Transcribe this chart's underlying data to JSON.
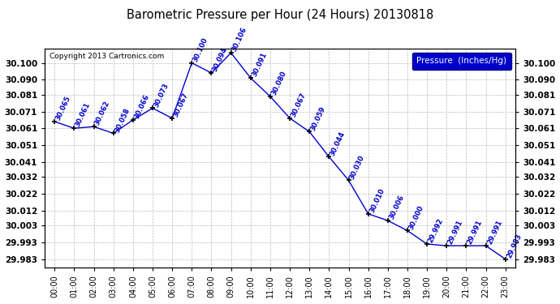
{
  "title": "Barometric Pressure per Hour (24 Hours) 20130818",
  "copyright": "Copyright 2013 Cartronics.com",
  "legend_label": "Pressure  (Inches/Hg)",
  "hours": [
    0,
    1,
    2,
    3,
    4,
    5,
    6,
    7,
    8,
    9,
    10,
    11,
    12,
    13,
    14,
    15,
    16,
    17,
    18,
    19,
    20,
    21,
    22,
    23
  ],
  "x_labels": [
    "00:00",
    "01:00",
    "02:00",
    "03:00",
    "04:00",
    "05:00",
    "06:00",
    "07:00",
    "08:00",
    "09:00",
    "10:00",
    "11:00",
    "12:00",
    "13:00",
    "14:00",
    "15:00",
    "16:00",
    "17:00",
    "18:00",
    "19:00",
    "20:00",
    "21:00",
    "22:00",
    "23:00"
  ],
  "pressure": [
    30.065,
    30.061,
    30.062,
    30.058,
    30.066,
    30.073,
    30.067,
    30.1,
    30.094,
    30.106,
    30.091,
    30.08,
    30.067,
    30.059,
    30.044,
    30.03,
    30.01,
    30.006,
    30.0,
    29.992,
    29.991,
    29.991,
    29.991,
    29.983
  ],
  "ylim_min": 29.978,
  "ylim_max": 30.1085,
  "line_color": "#0000cc",
  "marker_color": "#000000",
  "label_color": "#0000cc",
  "bg_color": "#ffffff",
  "grid_color": "#bbbbbb",
  "title_color": "#000000",
  "copyright_color": "#000000",
  "legend_bg": "#0000cc",
  "legend_text_color": "#ffffff",
  "yticks": [
    29.983,
    29.993,
    30.003,
    30.012,
    30.022,
    30.032,
    30.041,
    30.051,
    30.061,
    30.071,
    30.081,
    30.09,
    30.1
  ]
}
